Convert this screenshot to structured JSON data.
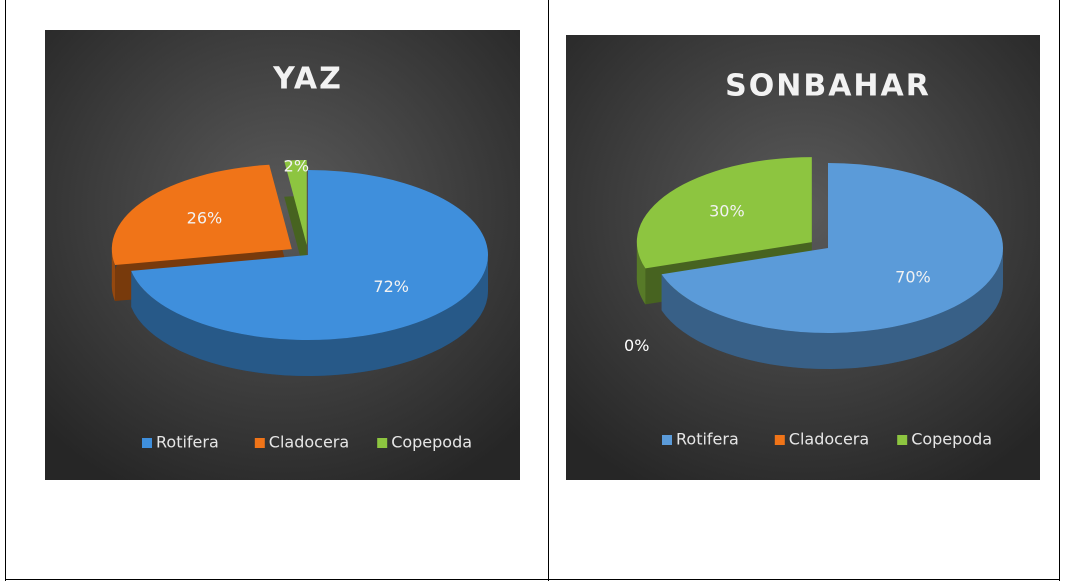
{
  "chart_data": [
    {
      "type": "pie",
      "title": "YAZ",
      "categories": [
        "Rotifera",
        "Cladocera",
        "Copepoda"
      ],
      "values": [
        72,
        26,
        2
      ],
      "value_labels": [
        "72%",
        "26%",
        "2%"
      ],
      "colors": [
        "#3f8fdc",
        "#f07418",
        "#8dc540"
      ],
      "legend": "bottom"
    },
    {
      "type": "pie",
      "title": "SONBAHAR",
      "categories": [
        "Rotifera",
        "Cladocera",
        "Copepoda"
      ],
      "values": [
        70,
        0,
        30
      ],
      "value_labels": [
        "70%",
        "0%",
        "30%"
      ],
      "colors": [
        "#5b9bd9",
        "#f07418",
        "#8dc540"
      ],
      "legend": "bottom"
    }
  ]
}
